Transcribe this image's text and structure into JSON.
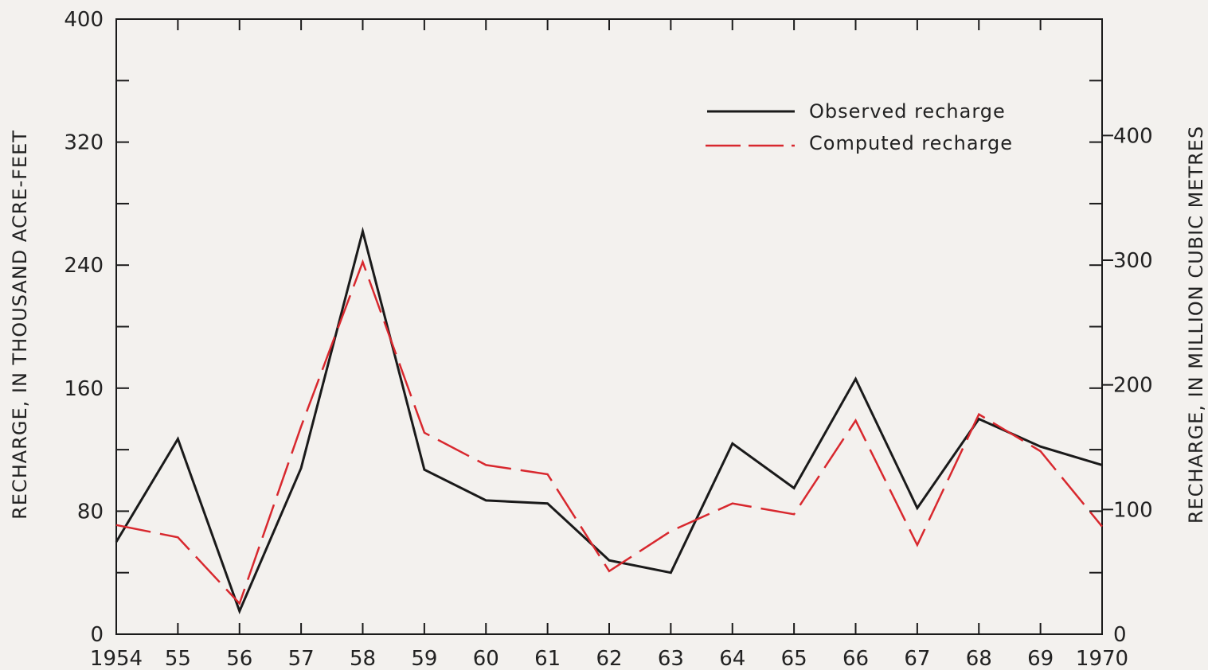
{
  "chart_data": {
    "type": "line",
    "x_tick_labels": [
      "1954",
      "55",
      "56",
      "57",
      "58",
      "59",
      "60",
      "61",
      "62",
      "63",
      "64",
      "65",
      "66",
      "67",
      "68",
      "69",
      "1970"
    ],
    "x": [
      1954,
      1955,
      1956,
      1957,
      1958,
      1959,
      1960,
      1961,
      1962,
      1963,
      1964,
      1965,
      1966,
      1967,
      1968,
      1969,
      1970
    ],
    "series": [
      {
        "name": "Observed recharge",
        "color": "#1a1a1a",
        "style": "solid",
        "values": [
          60,
          127,
          15,
          108,
          262,
          107,
          87,
          85,
          48,
          40,
          124,
          95,
          166,
          82,
          140,
          122,
          110
        ]
      },
      {
        "name": "Computed recharge",
        "color": "#d8282e",
        "style": "dashed",
        "values": [
          71,
          63,
          20,
          135,
          242,
          131,
          110,
          104,
          41,
          67,
          85,
          78,
          139,
          58,
          143,
          119,
          70
        ]
      }
    ],
    "ylabel_left": "RECHARGE, IN THOUSAND ACRE-FEET",
    "ylabel_right": "RECHARGE, IN MILLION CUBIC METRES",
    "ylim_left": [
      0,
      400
    ],
    "y_ticks_left": [
      0,
      80,
      160,
      240,
      320,
      400
    ],
    "y_tick_labels_left": [
      "0",
      "80",
      "160",
      "240",
      "320",
      "400"
    ],
    "ylim_right": [
      0,
      493.4
    ],
    "y_ticks_right": [
      0,
      100,
      200,
      300,
      400
    ],
    "y_tick_labels_right": [
      "0",
      "100",
      "200",
      "300",
      "400"
    ],
    "grid": false,
    "legend_position": "top-right"
  }
}
